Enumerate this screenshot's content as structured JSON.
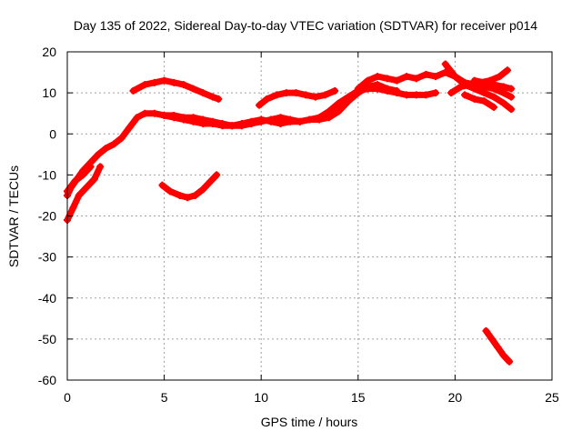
{
  "chart_data": {
    "type": "scatter",
    "title": "Day 135 of 2022, Sidereal Day-to-day VTEC variation (SDTVAR) for receiver p014",
    "xlabel": "GPS time / hours",
    "ylabel": "SDTVAR / TECUs",
    "xlim": [
      0,
      25
    ],
    "ylim": [
      -60,
      20
    ],
    "xticks": [
      0,
      5,
      10,
      15,
      20,
      25
    ],
    "yticks": [
      -60,
      -50,
      -40,
      -30,
      -20,
      -10,
      0,
      10,
      20
    ],
    "grid": true,
    "series_color": "#ff0000",
    "series": [
      {
        "name": "track-main-a",
        "x": [
          0.0,
          0.2,
          0.5,
          0.8,
          1.2,
          1.6,
          2.0,
          2.4,
          2.8,
          3.2,
          3.6,
          4.0,
          4.5,
          5.0,
          5.5,
          6.0,
          6.5,
          7.0,
          7.5,
          8.0,
          8.5,
          9.0,
          9.5,
          10.0,
          10.5,
          11.0,
          11.5,
          12.0,
          12.5,
          13.0,
          13.5,
          14.0,
          14.5,
          15.0,
          15.5,
          16.0,
          16.5,
          17.0,
          17.5,
          18.0,
          18.5,
          19.0
        ],
        "y": [
          -15,
          -13,
          -11,
          -9,
          -7,
          -5,
          -3.5,
          -2.5,
          -1,
          1.5,
          4,
          5,
          5,
          4.5,
          4,
          3.5,
          3,
          2.5,
          2.5,
          2,
          2,
          2.5,
          3,
          3.5,
          3,
          2.5,
          3,
          3,
          3.5,
          4,
          5.5,
          7.5,
          9,
          10.5,
          11,
          11,
          10.5,
          10,
          9.5,
          9.5,
          9.5,
          10
        ]
      },
      {
        "name": "track-main-b",
        "x": [
          5.0,
          5.5,
          6.0,
          6.5,
          7.0,
          7.5,
          8.0,
          8.5,
          9.0,
          9.5,
          10.0,
          10.5,
          11.0,
          11.5,
          12.0,
          12.5,
          13.0,
          13.5,
          14.0,
          14.5,
          15.0,
          15.5,
          16.0,
          16.5,
          17.0
        ],
        "y": [
          4.5,
          4.5,
          4,
          4,
          3.5,
          3,
          2.5,
          2,
          2,
          2.5,
          3,
          3.5,
          4,
          3.5,
          3,
          3.5,
          3.5,
          4,
          5.5,
          8,
          10,
          11.5,
          12,
          11,
          10.5
        ]
      },
      {
        "name": "track-early-a",
        "x": [
          0.0,
          0.3,
          0.6,
          1.0,
          1.4,
          1.7
        ],
        "y": [
          -21,
          -18,
          -15,
          -13,
          -11,
          -8
        ]
      },
      {
        "name": "track-early-b",
        "x": [
          0.0,
          0.4,
          0.8,
          1.2
        ],
        "y": [
          -14,
          -11.5,
          -10,
          -8
        ]
      },
      {
        "name": "track-upper-left",
        "x": [
          3.4,
          4.0,
          4.5,
          5.0,
          5.5,
          6.0,
          6.5,
          7.0,
          7.5,
          7.8
        ],
        "y": [
          10.5,
          12,
          12.5,
          13,
          12.5,
          12,
          11,
          10,
          9,
          8.5
        ]
      },
      {
        "name": "track-middle-upper",
        "x": [
          9.9,
          10.3,
          10.8,
          11.3,
          11.8,
          12.3,
          12.8,
          13.3,
          13.8
        ],
        "y": [
          7,
          8.5,
          9.5,
          10,
          10,
          9.5,
          9,
          9.5,
          10.5
        ]
      },
      {
        "name": "track-lower-arc",
        "x": [
          4.9,
          5.3,
          5.8,
          6.2,
          6.6,
          7.0,
          7.4,
          7.7
        ],
        "y": [
          -12.5,
          -14,
          -15,
          -15.5,
          -15,
          -13.5,
          -11.5,
          -10
        ]
      },
      {
        "name": "track-late-a",
        "x": [
          15.0,
          15.5,
          16.0,
          16.5,
          17.0,
          17.5,
          18.0,
          18.5,
          19.0,
          19.5,
          20.0,
          20.5,
          21.0,
          21.5,
          22.0,
          22.5,
          22.9
        ],
        "y": [
          11,
          13,
          14,
          13.5,
          13,
          14,
          13.5,
          14.5,
          14,
          15,
          14,
          12.5,
          12,
          11.5,
          11,
          10,
          9
        ]
      },
      {
        "name": "track-late-b",
        "x": [
          19.5,
          20.0,
          20.5,
          21.0,
          21.5,
          22.0,
          22.5,
          22.9
        ],
        "y": [
          17,
          14,
          12,
          11,
          10,
          9,
          7.5,
          6
        ]
      },
      {
        "name": "track-late-c",
        "x": [
          19.8,
          20.3,
          20.8,
          21.3,
          21.8,
          22.3,
          22.7
        ],
        "y": [
          10,
          11.5,
          12,
          12.5,
          13,
          14,
          15.5
        ]
      },
      {
        "name": "track-late-d",
        "x": [
          21.0,
          21.5,
          22.0,
          22.5,
          22.9
        ],
        "y": [
          13,
          12.5,
          12,
          11.5,
          11
        ]
      },
      {
        "name": "track-late-e",
        "x": [
          20.5,
          21.0,
          21.5,
          22.0
        ],
        "y": [
          9.5,
          8.5,
          8,
          6.5
        ]
      },
      {
        "name": "track-late-drop",
        "x": [
          21.6,
          21.9,
          22.2,
          22.5,
          22.8
        ],
        "y": [
          -48,
          -50,
          -52,
          -54,
          -55.5
        ]
      }
    ]
  }
}
